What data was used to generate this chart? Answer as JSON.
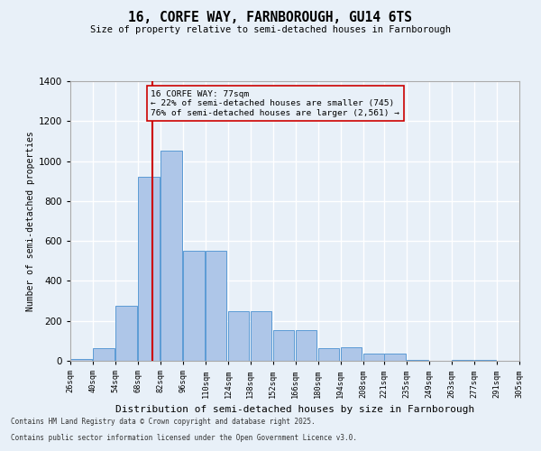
{
  "title1": "16, CORFE WAY, FARNBOROUGH, GU14 6TS",
  "title2": "Size of property relative to semi-detached houses in Farnborough",
  "xlabel": "Distribution of semi-detached houses by size in Farnborough",
  "ylabel": "Number of semi-detached properties",
  "bins": [
    26,
    40,
    54,
    68,
    82,
    96,
    110,
    124,
    138,
    152,
    166,
    180,
    194,
    208,
    221,
    235,
    249,
    263,
    277,
    291,
    305
  ],
  "values": [
    10,
    65,
    275,
    920,
    1050,
    550,
    550,
    250,
    250,
    155,
    155,
    65,
    70,
    35,
    35,
    5,
    0,
    5,
    5,
    0
  ],
  "bar_color": "#aec6e8",
  "bar_edgecolor": "#5b9bd5",
  "property_size": 77,
  "property_label": "16 CORFE WAY: 77sqm",
  "pct_smaller": "22%",
  "count_smaller": "745",
  "pct_larger": "76%",
  "count_larger": "2,561",
  "redline_color": "#cc0000",
  "annotation_box_edgecolor": "#cc0000",
  "background_color": "#e8f0f8",
  "grid_color": "#ffffff",
  "ylim": [
    0,
    1400
  ],
  "yticks": [
    0,
    200,
    400,
    600,
    800,
    1000,
    1200,
    1400
  ],
  "footer1": "Contains HM Land Registry data © Crown copyright and database right 2025.",
  "footer2": "Contains public sector information licensed under the Open Government Licence v3.0."
}
